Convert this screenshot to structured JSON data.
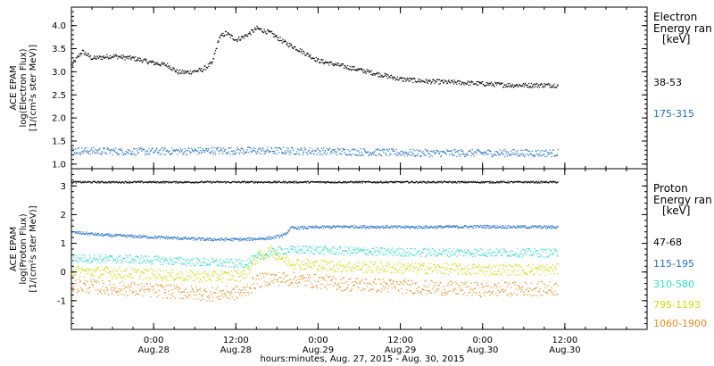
{
  "chart_data": [
    {
      "type": "scatter",
      "panel": "electron",
      "ylabel_lines": [
        "ACE EPAM",
        "log(Electron Flux)",
        "[1/(cm²s ster MeV)]"
      ],
      "legend_title_lines": [
        "Electron",
        "Energy ran",
        "[keV]"
      ],
      "ylim": [
        0.9,
        4.4
      ],
      "yticks": [
        1.0,
        1.5,
        2.0,
        2.5,
        3.0,
        3.5,
        4.0
      ],
      "ytick_labels": [
        "1.0",
        "1.5",
        "2.0",
        "2.5",
        "3.0",
        "3.5",
        "4.0"
      ],
      "grid": false,
      "legend_position": "right",
      "series": [
        {
          "name": "38-53",
          "color": "#000000",
          "spread": 0.05,
          "points": [
            [
              0.0,
              3.15
            ],
            [
              1.5,
              3.45
            ],
            [
              3,
              3.3
            ],
            [
              6,
              3.35
            ],
            [
              9,
              3.3
            ],
            [
              12,
              3.2
            ],
            [
              14,
              3.15
            ],
            [
              15.5,
              3.0
            ],
            [
              17,
              3.0
            ],
            [
              19,
              3.05
            ],
            [
              20.5,
              3.2
            ],
            [
              21.5,
              3.75
            ],
            [
              22.5,
              3.85
            ],
            [
              24,
              3.7
            ],
            [
              25.5,
              3.8
            ],
            [
              27,
              3.95
            ],
            [
              29,
              3.85
            ],
            [
              31,
              3.65
            ],
            [
              33,
              3.5
            ],
            [
              36,
              3.25
            ],
            [
              39,
              3.15
            ],
            [
              42,
              3.05
            ],
            [
              45,
              2.95
            ],
            [
              48,
              2.85
            ],
            [
              52,
              2.8
            ],
            [
              56,
              2.78
            ],
            [
              60,
              2.75
            ],
            [
              64,
              2.72
            ],
            [
              68,
              2.72
            ],
            [
              71,
              2.72
            ]
          ]
        },
        {
          "name": "175-315",
          "color": "#1f6fd0",
          "spread": 0.08,
          "points": [
            [
              0,
              1.3
            ],
            [
              10,
              1.28
            ],
            [
              20,
              1.3
            ],
            [
              30,
              1.3
            ],
            [
              40,
              1.28
            ],
            [
              50,
              1.25
            ],
            [
              60,
              1.25
            ],
            [
              71,
              1.25
            ]
          ]
        }
      ]
    },
    {
      "type": "scatter",
      "panel": "proton",
      "ylabel_lines": [
        "ACE EPAM",
        "log(Proton Flux)",
        "[1/(cm²s ster MeV)]"
      ],
      "legend_title_lines": [
        "Proton",
        "Energy ran",
        "[keV]"
      ],
      "ylim": [
        -2.0,
        3.6
      ],
      "yticks": [
        -1,
        0,
        1,
        2,
        3
      ],
      "ytick_labels": [
        "-1",
        "0",
        "1",
        "2",
        "3"
      ],
      "grid": false,
      "legend_position": "right",
      "series": [
        {
          "name": "47-68",
          "color": "#000000",
          "spread": 0.03,
          "points": [
            [
              0,
              3.15
            ],
            [
              71,
              3.15
            ]
          ]
        },
        {
          "name": "115-195",
          "color": "#1f6fd0",
          "spread": 0.05,
          "points": [
            [
              0,
              1.4
            ],
            [
              5,
              1.3
            ],
            [
              10,
              1.25
            ],
            [
              15,
              1.2
            ],
            [
              20,
              1.15
            ],
            [
              25,
              1.15
            ],
            [
              29,
              1.2
            ],
            [
              31,
              1.3
            ],
            [
              32,
              1.55
            ],
            [
              40,
              1.6
            ],
            [
              50,
              1.58
            ],
            [
              60,
              1.6
            ],
            [
              71,
              1.58
            ]
          ]
        },
        {
          "name": "310-580",
          "color": "#2de0c8",
          "spread": 0.15,
          "points": [
            [
              0,
              0.5
            ],
            [
              10,
              0.45
            ],
            [
              20,
              0.35
            ],
            [
              25,
              0.3
            ],
            [
              28,
              0.6
            ],
            [
              30,
              0.75
            ],
            [
              33,
              0.8
            ],
            [
              40,
              0.75
            ],
            [
              50,
              0.7
            ],
            [
              60,
              0.7
            ],
            [
              71,
              0.68
            ]
          ]
        },
        {
          "name": "795-1193",
          "color": "#c8e000",
          "spread": 0.2,
          "points": [
            [
              0,
              0.05
            ],
            [
              10,
              -0.05
            ],
            [
              20,
              -0.15
            ],
            [
              25,
              -0.1
            ],
            [
              27,
              0.5
            ],
            [
              29,
              0.75
            ],
            [
              31,
              0.45
            ],
            [
              33,
              0.3
            ],
            [
              40,
              0.2
            ],
            [
              50,
              0.15
            ],
            [
              60,
              0.1
            ],
            [
              71,
              0.1
            ]
          ]
        },
        {
          "name": "1060-1900",
          "color": "#f08a1c",
          "spread": 0.25,
          "points": [
            [
              0,
              -0.45
            ],
            [
              10,
              -0.6
            ],
            [
              20,
              -0.75
            ],
            [
              25,
              -0.7
            ],
            [
              27,
              -0.3
            ],
            [
              29,
              -0.2
            ],
            [
              33,
              -0.25
            ],
            [
              40,
              -0.4
            ],
            [
              50,
              -0.5
            ],
            [
              60,
              -0.6
            ],
            [
              71,
              -0.55
            ]
          ]
        }
      ]
    }
  ],
  "x_axis": {
    "xlim": [
      0,
      84
    ],
    "xlabel": "hours:minutes, Aug. 27, 2015 - Aug. 30, 2015",
    "ticks": [
      {
        "hours": 12,
        "time": "0:00",
        "date": "Aug.28"
      },
      {
        "hours": 24,
        "time": "12:00",
        "date": "Aug.28"
      },
      {
        "hours": 36,
        "time": "0:00",
        "date": "Aug.29"
      },
      {
        "hours": 48,
        "time": "12:00",
        "date": "Aug.29"
      },
      {
        "hours": 60,
        "time": "0:00",
        "date": "Aug.30"
      },
      {
        "hours": 72,
        "time": "12:00",
        "date": "Aug.30"
      }
    ],
    "minor_tick_step_hours": 3
  }
}
